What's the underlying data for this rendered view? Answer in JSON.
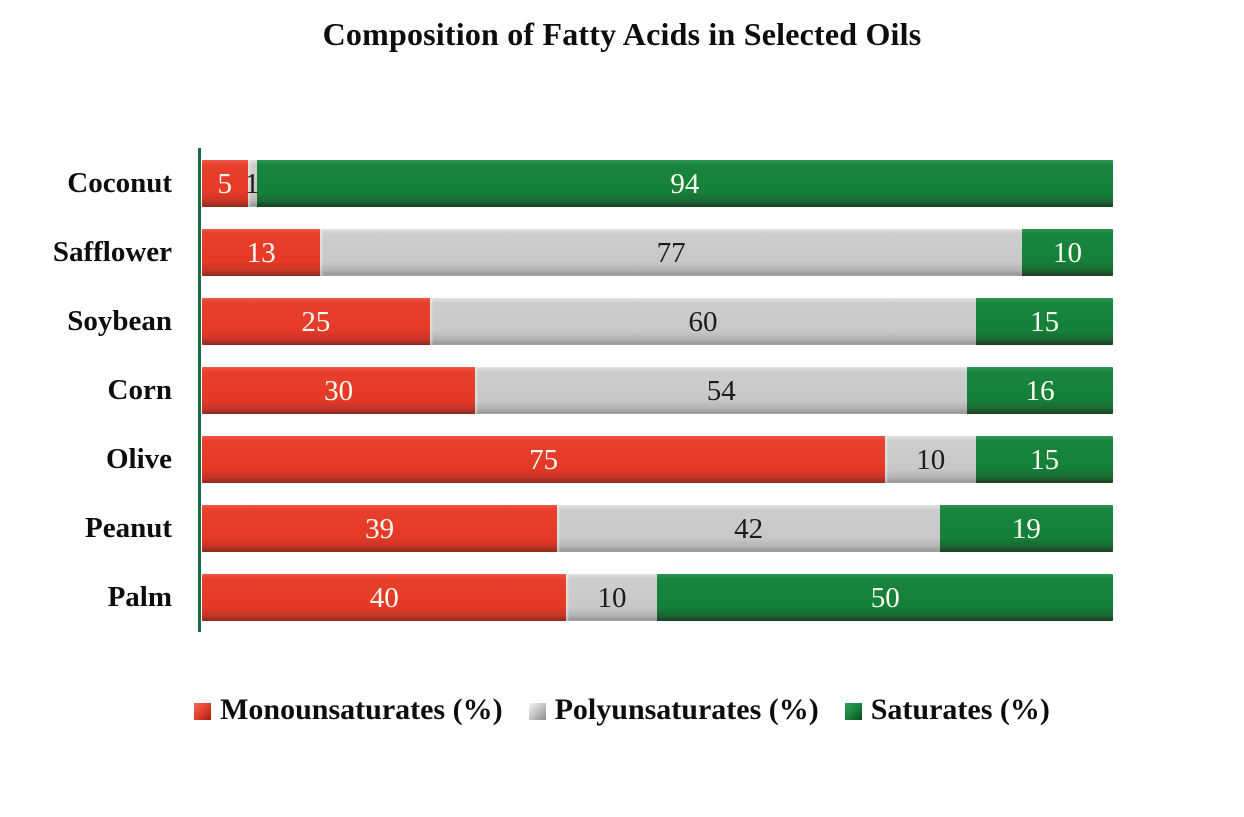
{
  "chart_data": {
    "type": "bar",
    "orientation": "horizontal",
    "stacked": true,
    "title": "Composition of Fatty Acids in Selected Oils",
    "categories": [
      "Coconut",
      "Safflower",
      "Soybean",
      "Corn",
      "Olive",
      "Peanut",
      "Palm"
    ],
    "series": [
      {
        "key": "mono",
        "name": "Monounsaturates (%)",
        "color": "#E63927",
        "value_label_color": "#FDFCF3",
        "values": [
          5,
          13,
          25,
          30,
          75,
          39,
          40
        ]
      },
      {
        "key": "poly",
        "name": "Polyunsaturates (%)",
        "color": "#C8C8C8",
        "value_label_color": "#1C1C1C",
        "values": [
          1,
          77,
          60,
          54,
          10,
          42,
          10
        ]
      },
      {
        "key": "sat",
        "name": "Saturates (%)",
        "color": "#148038",
        "value_label_color": "#FDFCF3",
        "values": [
          94,
          10,
          15,
          16,
          15,
          19,
          50
        ]
      }
    ],
    "x_range": [
      0,
      100
    ],
    "axis_color": "#1A6B40",
    "value_labels": "inside-center",
    "legend_position": "bottom",
    "grid": false,
    "background": "#FFFFFF",
    "text_color": "#0d0d0d"
  }
}
